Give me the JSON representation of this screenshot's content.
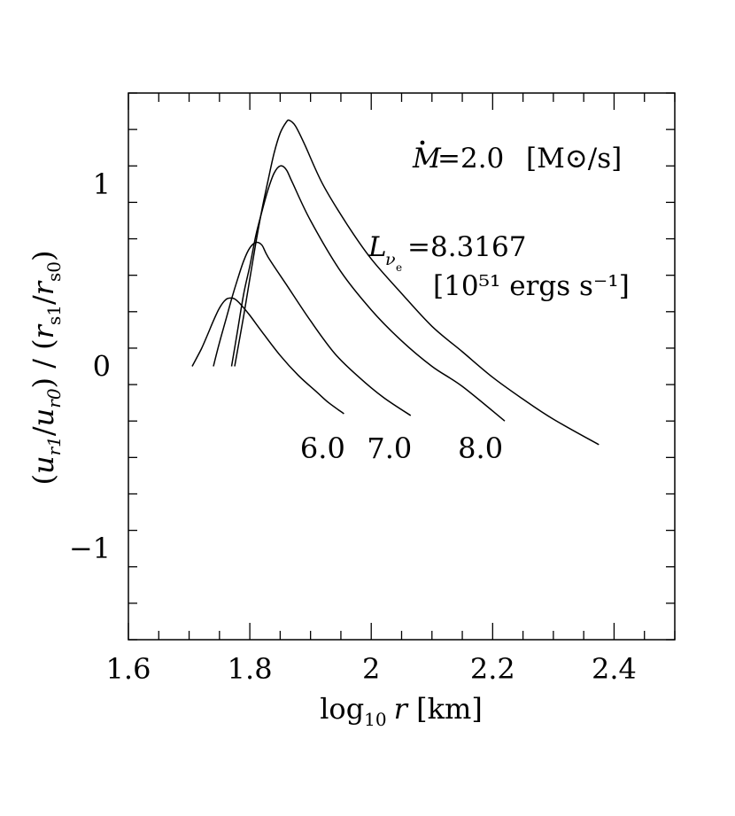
{
  "chart_data": {
    "type": "line",
    "title": "",
    "xlabel": "log10 r [km]",
    "xlabel_parts": {
      "pre": "log",
      "sub": "10",
      "var": "r",
      "post": " [km]"
    },
    "ylabel_parts": {
      "u": "u",
      "r1": "r1",
      "r0": "r0",
      "rs": "r",
      "s1": "s1",
      "s0": "s0"
    },
    "ylabel": "(u_r1/u_r0) / (r_s1/r_s0)",
    "xlim": [
      1.6,
      2.5
    ],
    "ylim": [
      -1.5,
      1.5
    ],
    "x_ticks": [
      1.6,
      1.8,
      2.0,
      2.2,
      2.4
    ],
    "x_tick_labels": [
      "1.6",
      "1.8",
      "2",
      "2.2",
      "2.4"
    ],
    "y_ticks": [
      -1,
      0,
      1
    ],
    "y_tick_labels": [
      "−1",
      "0",
      "1"
    ],
    "annotations": {
      "mdot_value": "=2.0",
      "mdot_units": "[M⊙/s]",
      "lum_value": "=8.3167",
      "lum_units": "[10⁵¹ ergs s⁻¹]"
    },
    "series": [
      {
        "name": "6.0",
        "label_x": 1.92,
        "label_y": -0.45,
        "x": [
          1.705,
          1.72,
          1.73,
          1.74,
          1.75,
          1.76,
          1.768,
          1.775,
          1.785,
          1.8,
          1.82,
          1.85,
          1.88,
          1.91,
          1.93,
          1.955
        ],
        "y": [
          0.0,
          0.095,
          0.17,
          0.25,
          0.32,
          0.365,
          0.375,
          0.37,
          0.34,
          0.28,
          0.19,
          0.06,
          -0.05,
          -0.14,
          -0.2,
          -0.26
        ]
      },
      {
        "name": "7.0",
        "label_x": 2.03,
        "label_y": -0.45,
        "x": [
          1.74,
          1.75,
          1.76,
          1.77,
          1.78,
          1.79,
          1.8,
          1.81,
          1.82,
          1.83,
          1.86,
          1.9,
          1.94,
          1.98,
          2.02,
          2.065
        ],
        "y": [
          0.0,
          0.13,
          0.25,
          0.37,
          0.48,
          0.58,
          0.65,
          0.68,
          0.665,
          0.6,
          0.45,
          0.25,
          0.07,
          -0.06,
          -0.17,
          -0.27
        ]
      },
      {
        "name": "8.0",
        "label_x": 2.18,
        "label_y": -0.45,
        "x": [
          1.77,
          1.78,
          1.79,
          1.8,
          1.81,
          1.82,
          1.83,
          1.84,
          1.85,
          1.86,
          1.87,
          1.9,
          1.95,
          2.0,
          2.05,
          2.1,
          2.15,
          2.22
        ],
        "y": [
          0.0,
          0.2,
          0.4,
          0.55,
          0.72,
          0.85,
          0.97,
          1.06,
          1.1,
          1.08,
          1.01,
          0.8,
          0.52,
          0.31,
          0.14,
          0.0,
          -0.11,
          -0.3
        ]
      },
      {
        "name": "",
        "label_x": 0,
        "label_y": 0,
        "x": [
          1.775,
          1.79,
          1.8,
          1.81,
          1.82,
          1.83,
          1.84,
          1.85,
          1.86,
          1.865,
          1.875,
          1.89,
          1.92,
          1.96,
          2.0,
          2.05,
          2.1,
          2.15,
          2.2,
          2.25,
          2.3,
          2.375
        ],
        "y": [
          0.0,
          0.28,
          0.48,
          0.68,
          0.86,
          1.02,
          1.17,
          1.28,
          1.34,
          1.35,
          1.32,
          1.22,
          1.0,
          0.78,
          0.59,
          0.4,
          0.22,
          0.08,
          -0.06,
          -0.18,
          -0.29,
          -0.43
        ]
      }
    ]
  }
}
